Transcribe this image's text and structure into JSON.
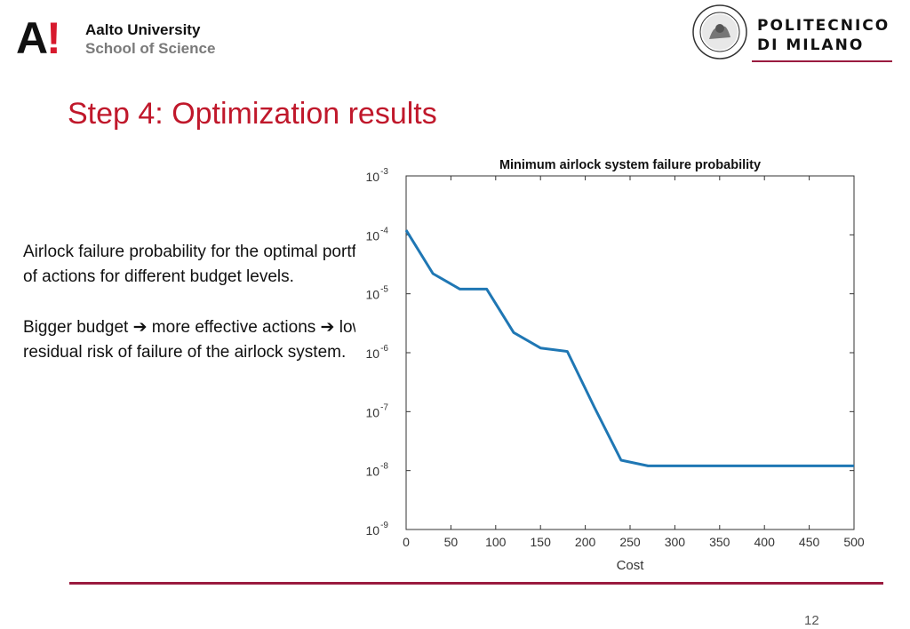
{
  "header": {
    "aalto": {
      "mark": "A",
      "excl": "!",
      "name": "Aalto University",
      "school": "School of Science"
    },
    "polimi": {
      "line1": "POLITECNICO",
      "line2": "DI MILANO",
      "seal_text": "POLITECNICO MILANO"
    }
  },
  "slide": {
    "title": "Step 4: Optimization results",
    "paragraph1": "Airlock failure probability for the optimal portfolio of actions for different budget levels.",
    "paragraph2_parts": [
      "Bigger budget ",
      "more effective actions ",
      "lower residual risk of failure of the airlock system."
    ],
    "arrow_glyph": "➔",
    "page_number": "12"
  },
  "chart_data": {
    "type": "line",
    "title": "Minimum airlock system failure probability",
    "xlabel": "Cost",
    "ylabel": "",
    "xlim": [
      0,
      500
    ],
    "ylim": [
      1e-09,
      0.001
    ],
    "yscale": "log",
    "x_ticks": [
      "0",
      "50",
      "100",
      "150",
      "200",
      "250",
      "300",
      "350",
      "400",
      "450",
      "500"
    ],
    "y_ticks": [
      {
        "base": "10",
        "exp": "-3",
        "value": 0.001
      },
      {
        "base": "10",
        "exp": "-4",
        "value": 0.0001
      },
      {
        "base": "10",
        "exp": "-5",
        "value": 1e-05
      },
      {
        "base": "10",
        "exp": "-6",
        "value": 1e-06
      },
      {
        "base": "10",
        "exp": "-7",
        "value": 1e-07
      },
      {
        "base": "10",
        "exp": "-8",
        "value": 1e-08
      },
      {
        "base": "10",
        "exp": "-9",
        "value": 1e-09
      }
    ],
    "grid": false,
    "line_color": "#1f77b4",
    "series": [
      {
        "x": [
          0,
          30,
          60,
          90,
          120,
          150,
          180,
          210,
          240,
          270,
          300,
          350,
          400,
          450,
          500
        ],
        "y": [
          0.00012,
          2.2e-05,
          1.2e-05,
          1.2e-05,
          2.2e-06,
          1.2e-06,
          1.05e-06,
          1.2e-07,
          1.5e-08,
          1.2e-08,
          1.2e-08,
          1.2e-08,
          1.2e-08,
          1.2e-08,
          1.2e-08
        ]
      }
    ]
  }
}
